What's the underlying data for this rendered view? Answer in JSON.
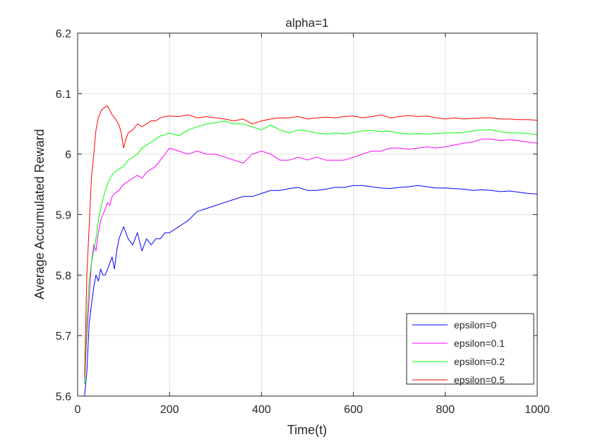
{
  "chart_data": {
    "type": "line",
    "title": "alpha=1",
    "xlabel": "Time(t)",
    "ylabel": "Average Accumulated Reward",
    "xlim": [
      0,
      1000
    ],
    "ylim": [
      5.6,
      6.2
    ],
    "xticks": [
      0,
      200,
      400,
      600,
      800,
      1000
    ],
    "yticks": [
      5.6,
      5.7,
      5.8,
      5.9,
      6,
      6.1,
      6.2
    ],
    "xtick_labels": [
      "0",
      "200",
      "400",
      "600",
      "800",
      "1000"
    ],
    "ytick_labels": [
      "5.6",
      "5.7",
      "5.8",
      "5.9",
      "6",
      "6.1",
      "6.2"
    ],
    "grid": true,
    "legend_position": "bottom-right",
    "series": [
      {
        "name": "epsilon=0",
        "color": "#0000ff",
        "x": [
          15,
          20,
          25,
          30,
          35,
          40,
          45,
          50,
          55,
          60,
          65,
          70,
          75,
          80,
          85,
          90,
          95,
          100,
          110,
          120,
          130,
          140,
          150,
          160,
          170,
          180,
          190,
          200,
          220,
          240,
          260,
          280,
          300,
          320,
          340,
          360,
          380,
          400,
          420,
          440,
          460,
          480,
          500,
          520,
          540,
          560,
          580,
          600,
          620,
          640,
          660,
          680,
          700,
          720,
          740,
          760,
          780,
          800,
          820,
          840,
          860,
          880,
          900,
          920,
          940,
          960,
          980,
          1000
        ],
        "y": [
          5.6,
          5.64,
          5.72,
          5.75,
          5.78,
          5.8,
          5.79,
          5.81,
          5.8,
          5.8,
          5.81,
          5.82,
          5.83,
          5.81,
          5.84,
          5.86,
          5.87,
          5.88,
          5.86,
          5.85,
          5.87,
          5.84,
          5.86,
          5.85,
          5.86,
          5.86,
          5.87,
          5.87,
          5.88,
          5.89,
          5.905,
          5.91,
          5.915,
          5.92,
          5.925,
          5.93,
          5.93,
          5.935,
          5.94,
          5.94,
          5.943,
          5.945,
          5.94,
          5.94,
          5.942,
          5.945,
          5.945,
          5.948,
          5.948,
          5.946,
          5.944,
          5.943,
          5.945,
          5.946,
          5.948,
          5.946,
          5.944,
          5.944,
          5.943,
          5.942,
          5.94,
          5.941,
          5.94,
          5.938,
          5.939,
          5.937,
          5.935,
          5.934
        ]
      },
      {
        "name": "epsilon=0.1",
        "color": "#ff00ff",
        "x": [
          15,
          20,
          25,
          30,
          35,
          40,
          45,
          50,
          55,
          60,
          65,
          70,
          75,
          80,
          90,
          100,
          110,
          120,
          130,
          140,
          150,
          160,
          170,
          180,
          190,
          200,
          220,
          240,
          260,
          280,
          300,
          320,
          340,
          360,
          380,
          400,
          420,
          440,
          460,
          480,
          500,
          520,
          540,
          560,
          580,
          600,
          620,
          640,
          660,
          680,
          700,
          720,
          740,
          760,
          780,
          800,
          820,
          840,
          860,
          880,
          900,
          920,
          940,
          960,
          980,
          1000
        ],
        "y": [
          5.62,
          5.7,
          5.76,
          5.82,
          5.85,
          5.84,
          5.87,
          5.89,
          5.9,
          5.91,
          5.92,
          5.915,
          5.93,
          5.935,
          5.94,
          5.95,
          5.955,
          5.96,
          5.965,
          5.96,
          5.97,
          5.975,
          5.98,
          5.99,
          6.0,
          6.01,
          6.005,
          6.0,
          6.005,
          6.0,
          6.0,
          5.995,
          5.99,
          5.985,
          6.0,
          6.005,
          6.0,
          5.99,
          5.99,
          5.995,
          5.99,
          5.995,
          5.99,
          5.99,
          5.99,
          5.995,
          6.0,
          6.005,
          6.005,
          6.01,
          6.01,
          6.008,
          6.01,
          6.012,
          6.01,
          6.012,
          6.015,
          6.018,
          6.02,
          6.025,
          6.025,
          6.022,
          6.024,
          6.022,
          6.02,
          6.018
        ]
      },
      {
        "name": "epsilon=0.2",
        "color": "#00ff00",
        "x": [
          15,
          20,
          25,
          30,
          35,
          40,
          45,
          50,
          55,
          60,
          65,
          70,
          75,
          80,
          90,
          100,
          110,
          120,
          130,
          140,
          150,
          160,
          170,
          180,
          190,
          200,
          220,
          240,
          260,
          280,
          300,
          320,
          340,
          360,
          380,
          400,
          420,
          440,
          460,
          480,
          500,
          520,
          540,
          560,
          580,
          600,
          620,
          640,
          660,
          680,
          700,
          720,
          740,
          760,
          780,
          800,
          820,
          840,
          860,
          880,
          900,
          920,
          940,
          960,
          980,
          1000
        ],
        "y": [
          5.62,
          5.72,
          5.79,
          5.82,
          5.84,
          5.86,
          5.89,
          5.91,
          5.925,
          5.94,
          5.95,
          5.96,
          5.965,
          5.97,
          5.975,
          5.98,
          5.99,
          5.995,
          6.0,
          6.01,
          6.015,
          6.02,
          6.025,
          6.03,
          6.032,
          6.035,
          6.03,
          6.04,
          6.045,
          6.05,
          6.052,
          6.055,
          6.05,
          6.05,
          6.045,
          6.04,
          6.048,
          6.04,
          6.035,
          6.04,
          6.038,
          6.035,
          6.033,
          6.035,
          6.033,
          6.036,
          6.038,
          6.039,
          6.037,
          6.038,
          6.035,
          6.033,
          6.034,
          6.033,
          6.034,
          6.035,
          6.035,
          6.036,
          6.038,
          6.04,
          6.04,
          6.037,
          6.035,
          6.035,
          6.034,
          6.032
        ]
      },
      {
        "name": "epsilon=0.5",
        "color": "#ff0000",
        "x": [
          15,
          20,
          25,
          30,
          35,
          40,
          45,
          50,
          55,
          60,
          65,
          70,
          75,
          80,
          85,
          90,
          95,
          100,
          105,
          110,
          120,
          130,
          140,
          150,
          160,
          170,
          180,
          190,
          200,
          220,
          240,
          260,
          280,
          300,
          320,
          340,
          360,
          380,
          400,
          420,
          440,
          460,
          480,
          500,
          520,
          540,
          560,
          580,
          600,
          620,
          640,
          660,
          680,
          700,
          720,
          740,
          760,
          780,
          800,
          820,
          840,
          860,
          880,
          900,
          920,
          940,
          960,
          980,
          1000
        ],
        "y": [
          5.63,
          5.8,
          5.88,
          5.96,
          6.0,
          6.04,
          6.06,
          6.07,
          6.075,
          6.078,
          6.08,
          6.072,
          6.065,
          6.06,
          6.055,
          6.048,
          6.035,
          6.01,
          6.025,
          6.035,
          6.04,
          6.05,
          6.045,
          6.05,
          6.055,
          6.055,
          6.06,
          6.062,
          6.063,
          6.062,
          6.065,
          6.06,
          6.062,
          6.06,
          6.058,
          6.055,
          6.058,
          6.05,
          6.055,
          6.058,
          6.06,
          6.06,
          6.062,
          6.058,
          6.06,
          6.061,
          6.06,
          6.062,
          6.063,
          6.06,
          6.062,
          6.065,
          6.06,
          6.062,
          6.064,
          6.062,
          6.063,
          6.06,
          6.058,
          6.06,
          6.058,
          6.059,
          6.06,
          6.06,
          6.058,
          6.058,
          6.057,
          6.057,
          6.056
        ]
      }
    ]
  }
}
